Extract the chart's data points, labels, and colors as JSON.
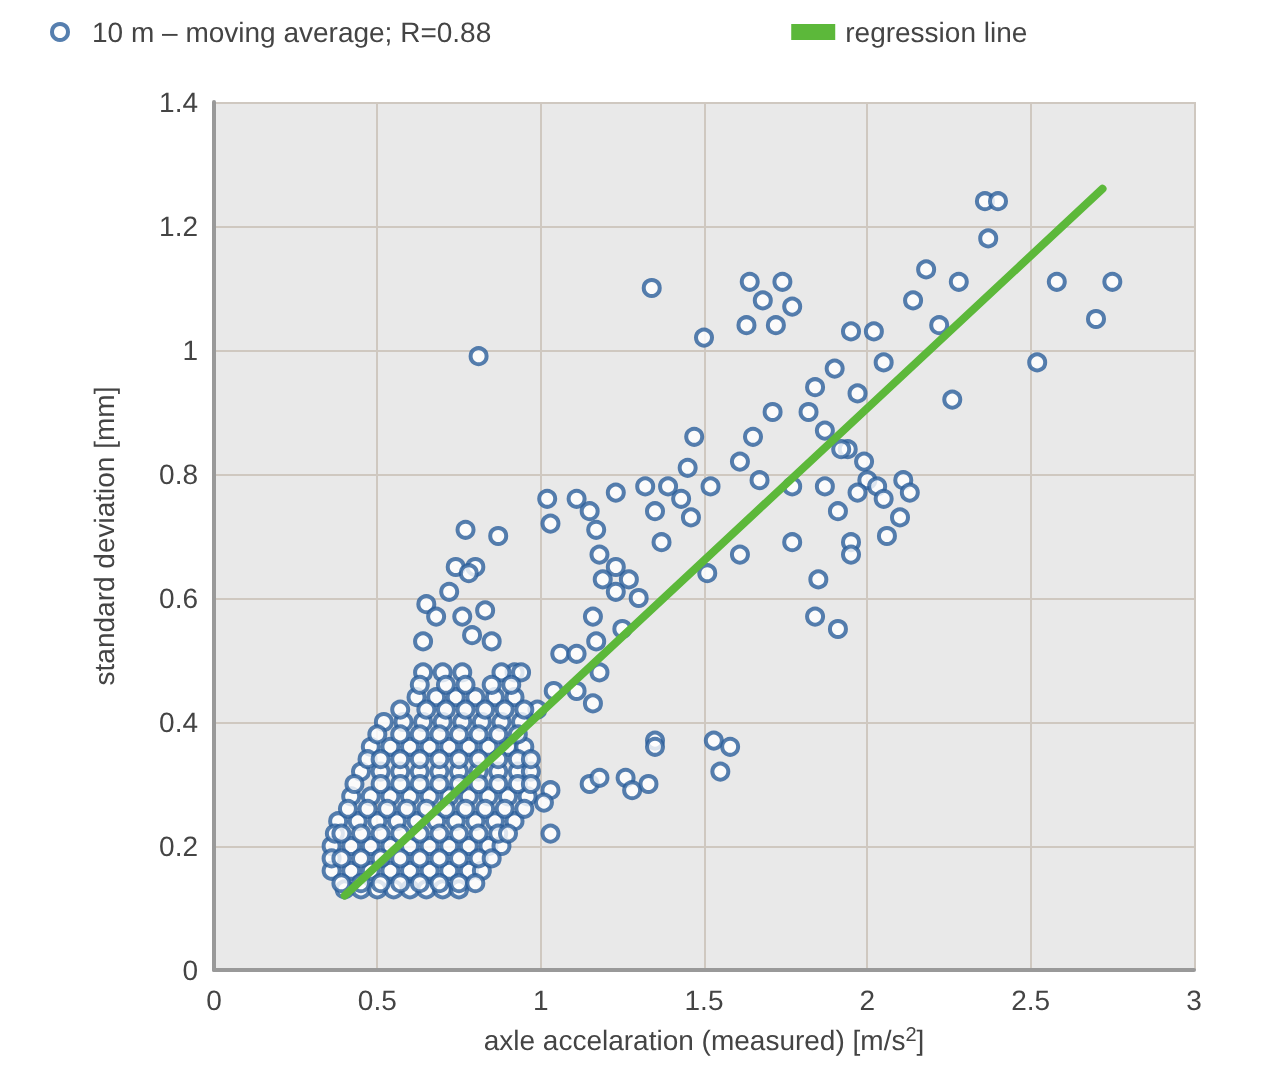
{
  "chart_data": {
    "type": "scatter",
    "xlabel": "axle accelaration (measured) [m/s$^{2}$]",
    "ylabel": "standard deviation [mm]",
    "xlim": [
      0,
      3
    ],
    "xticks": [
      0,
      0.5,
      1,
      1.5,
      2,
      2.5,
      3
    ],
    "ylim": [
      0,
      1.4
    ],
    "yticks": [
      0,
      0.2,
      0.4,
      0.6,
      0.8,
      1,
      1.2,
      1.4
    ],
    "grid": true,
    "legend": "top",
    "series": [
      {
        "name": "10 m – moving average; R=0.88",
        "marker": "circle",
        "color": "#2c5f9b",
        "x": [
          1.34,
          0.81,
          1.64,
          1.74,
          1.68,
          1.77,
          1.72,
          1.63,
          1.5,
          1.95,
          2.02,
          2.05,
          2.14,
          2.18,
          2.28,
          2.22,
          2.26,
          2.36,
          2.4,
          2.37,
          2.58,
          2.75,
          2.7,
          2.52,
          1.47,
          1.9,
          1.84,
          1.97,
          1.82,
          1.71,
          1.65,
          1.61,
          1.67,
          1.77,
          1.87,
          1.94,
          1.99,
          1.92,
          2.0,
          1.87,
          2.03,
          2.11,
          2.13,
          2.05,
          2.1,
          1.97,
          2.06,
          1.91,
          1.95,
          1.95,
          1.77,
          1.61,
          1.85,
          1.84,
          1.91,
          1.51,
          1.52,
          1.45,
          1.39,
          1.32,
          1.43,
          1.46,
          1.35,
          1.37,
          1.23,
          1.02,
          1.03,
          1.11,
          1.15,
          1.17,
          1.18,
          1.23,
          1.27,
          1.19,
          1.23,
          1.3,
          1.25,
          1.16,
          1.17,
          1.18,
          1.16,
          1.11,
          1.06,
          1.11,
          0.8,
          0.87,
          0.77,
          0.74,
          0.78,
          0.72,
          0.65,
          0.68,
          0.76,
          0.83,
          0.85,
          0.79,
          0.64,
          1.35,
          1.35,
          1.53,
          1.58,
          1.55,
          1.15,
          1.18,
          1.26,
          1.28,
          1.33,
          1.03,
          1.01,
          1.03,
          0.99,
          1.04,
          0.92,
          0.4,
          0.45,
          0.5,
          0.55,
          0.6,
          0.65,
          0.7,
          0.75,
          0.36,
          0.42,
          0.48,
          0.54,
          0.6,
          0.66,
          0.72,
          0.78,
          0.82,
          0.36,
          0.42,
          0.48,
          0.54,
          0.6,
          0.66,
          0.72,
          0.78,
          0.84,
          0.88,
          0.38,
          0.44,
          0.5,
          0.56,
          0.62,
          0.68,
          0.74,
          0.8,
          0.86,
          0.92,
          0.42,
          0.48,
          0.54,
          0.6,
          0.66,
          0.72,
          0.78,
          0.84,
          0.9,
          0.96,
          0.45,
          0.51,
          0.57,
          0.63,
          0.69,
          0.75,
          0.81,
          0.87,
          0.93,
          0.97,
          0.48,
          0.54,
          0.6,
          0.66,
          0.72,
          0.78,
          0.84,
          0.9,
          0.95,
          0.52,
          0.58,
          0.64,
          0.7,
          0.76,
          0.82,
          0.88,
          0.94,
          0.62,
          0.68,
          0.74,
          0.8,
          0.86,
          0.92,
          0.64,
          0.7,
          0.76,
          0.88,
          0.94,
          0.39,
          0.45,
          0.51,
          0.57,
          0.63,
          0.69,
          0.75,
          0.8,
          0.36,
          0.39,
          0.45,
          0.51,
          0.57,
          0.63,
          0.69,
          0.75,
          0.81,
          0.85,
          0.37,
          0.39,
          0.45,
          0.51,
          0.57,
          0.63,
          0.69,
          0.75,
          0.81,
          0.87,
          0.9,
          0.41,
          0.47,
          0.53,
          0.59,
          0.65,
          0.71,
          0.77,
          0.83,
          0.89,
          0.95,
          0.43,
          0.51,
          0.57,
          0.63,
          0.69,
          0.75,
          0.81,
          0.87,
          0.93,
          0.97,
          0.47,
          0.51,
          0.57,
          0.63,
          0.69,
          0.75,
          0.81,
          0.87,
          0.93,
          0.97,
          0.5,
          0.57,
          0.63,
          0.69,
          0.75,
          0.81,
          0.87,
          0.93,
          0.57,
          0.65,
          0.71,
          0.77,
          0.83,
          0.89,
          0.95,
          0.63,
          0.71,
          0.77,
          0.85,
          0.91
        ],
        "values": [
          1.1,
          0.99,
          1.11,
          1.11,
          1.08,
          1.07,
          1.04,
          1.04,
          1.02,
          1.03,
          1.03,
          0.98,
          1.08,
          1.13,
          1.11,
          1.04,
          0.92,
          1.24,
          1.24,
          1.18,
          1.11,
          1.11,
          1.05,
          0.98,
          0.86,
          0.97,
          0.94,
          0.93,
          0.9,
          0.9,
          0.86,
          0.82,
          0.79,
          0.78,
          0.87,
          0.84,
          0.82,
          0.84,
          0.79,
          0.78,
          0.78,
          0.79,
          0.77,
          0.76,
          0.73,
          0.77,
          0.7,
          0.74,
          0.69,
          0.67,
          0.69,
          0.67,
          0.63,
          0.57,
          0.55,
          0.64,
          0.78,
          0.81,
          0.78,
          0.78,
          0.76,
          0.73,
          0.74,
          0.69,
          0.77,
          0.76,
          0.72,
          0.76,
          0.74,
          0.71,
          0.67,
          0.65,
          0.63,
          0.63,
          0.61,
          0.6,
          0.55,
          0.57,
          0.53,
          0.48,
          0.43,
          0.45,
          0.51,
          0.51,
          0.65,
          0.7,
          0.71,
          0.65,
          0.64,
          0.61,
          0.59,
          0.57,
          0.57,
          0.58,
          0.53,
          0.54,
          0.53,
          0.37,
          0.36,
          0.37,
          0.36,
          0.32,
          0.3,
          0.31,
          0.31,
          0.29,
          0.3,
          0.29,
          0.27,
          0.22,
          0.42,
          0.45,
          0.48,
          0.13,
          0.13,
          0.13,
          0.13,
          0.13,
          0.13,
          0.13,
          0.13,
          0.16,
          0.16,
          0.16,
          0.16,
          0.16,
          0.16,
          0.16,
          0.16,
          0.16,
          0.2,
          0.2,
          0.2,
          0.2,
          0.2,
          0.2,
          0.2,
          0.2,
          0.2,
          0.2,
          0.24,
          0.24,
          0.24,
          0.24,
          0.24,
          0.24,
          0.24,
          0.24,
          0.24,
          0.24,
          0.28,
          0.28,
          0.28,
          0.28,
          0.28,
          0.28,
          0.28,
          0.28,
          0.28,
          0.28,
          0.32,
          0.32,
          0.32,
          0.32,
          0.32,
          0.32,
          0.32,
          0.32,
          0.32,
          0.32,
          0.36,
          0.36,
          0.36,
          0.36,
          0.36,
          0.36,
          0.36,
          0.36,
          0.36,
          0.4,
          0.4,
          0.4,
          0.4,
          0.4,
          0.4,
          0.4,
          0.4,
          0.44,
          0.44,
          0.44,
          0.44,
          0.44,
          0.44,
          0.48,
          0.48,
          0.48,
          0.48,
          0.48,
          0.14,
          0.14,
          0.14,
          0.14,
          0.14,
          0.14,
          0.14,
          0.14,
          0.18,
          0.18,
          0.18,
          0.18,
          0.18,
          0.18,
          0.18,
          0.18,
          0.18,
          0.18,
          0.22,
          0.22,
          0.22,
          0.22,
          0.22,
          0.22,
          0.22,
          0.22,
          0.22,
          0.22,
          0.22,
          0.26,
          0.26,
          0.26,
          0.26,
          0.26,
          0.26,
          0.26,
          0.26,
          0.26,
          0.26,
          0.3,
          0.3,
          0.3,
          0.3,
          0.3,
          0.3,
          0.3,
          0.3,
          0.3,
          0.3,
          0.34,
          0.34,
          0.34,
          0.34,
          0.34,
          0.34,
          0.34,
          0.34,
          0.34,
          0.34,
          0.38,
          0.38,
          0.38,
          0.38,
          0.38,
          0.38,
          0.38,
          0.38,
          0.42,
          0.42,
          0.42,
          0.42,
          0.42,
          0.42,
          0.42,
          0.46,
          0.46,
          0.46,
          0.46,
          0.46
        ]
      },
      {
        "name": "regression line",
        "type": "line",
        "marker": "none",
        "line_style": "solid",
        "color": "#5cb83a",
        "x": [
          0.4,
          2.72
        ],
        "values": [
          0.12,
          1.26
        ]
      }
    ]
  }
}
